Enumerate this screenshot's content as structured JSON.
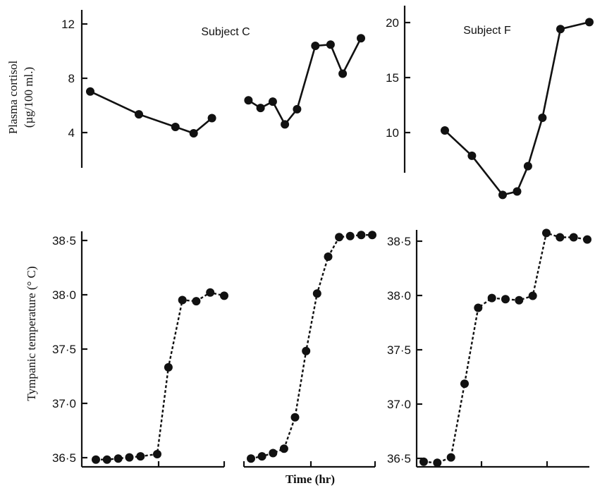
{
  "figure": {
    "ylabel_cortisol_line1": "Plasma cortisol",
    "ylabel_cortisol_line2": "(µg/100 ml.)",
    "ylabel_temp": "Tympanic temperature (° C)",
    "xlabel": "Time (hr)",
    "subject_c": "Subject C",
    "subject_f": "Subject F"
  },
  "chart_data": [
    {
      "id": "cortisol-c",
      "type": "line",
      "title": "Subject C",
      "ylabel": "Plasma cortisol (µg/100 ml.)",
      "ylim": [
        1.6,
        13.0
      ],
      "yticks": [
        4,
        8,
        12
      ],
      "ytick_labels": [
        "4",
        "8",
        "12"
      ],
      "series": [
        {
          "x": [
            0.0,
            0.8,
            1.4,
            1.7,
            2.0
          ],
          "values": [
            6.9,
            5.1,
            4.1,
            3.6,
            4.8
          ]
        },
        {
          "x": [
            2.6,
            2.8,
            3.0,
            3.2,
            3.4,
            3.7,
            3.95,
            4.15,
            4.45
          ],
          "values": [
            6.2,
            5.6,
            6.1,
            4.3,
            5.5,
            10.5,
            10.6,
            8.3,
            11.1
          ]
        }
      ],
      "grid": false
    },
    {
      "id": "cortisol-f",
      "type": "line",
      "title": "Subject F",
      "ylabel": "",
      "ylim": [
        6.5,
        21.5
      ],
      "yticks": [
        10,
        15,
        20
      ],
      "ytick_labels": [
        "10",
        "15",
        "20"
      ],
      "series": [
        {
          "x": [
            0.0,
            0.75,
            1.6,
            2.0,
            2.3,
            2.7,
            3.2,
            4.0
          ],
          "values": [
            11.4,
            9.2,
            5.8,
            6.1,
            8.3,
            12.5,
            20.2,
            20.8
          ]
        }
      ],
      "grid": false
    },
    {
      "id": "temp-c-1",
      "type": "line",
      "title": "",
      "ylabel": "Tympanic temperature (° C)",
      "ylim": [
        36.44,
        38.65
      ],
      "yticks": [
        36.5,
        37.0,
        37.5,
        38.0,
        38.5
      ],
      "ytick_labels": [
        "36·5",
        "37·0",
        "37·5",
        "38·0",
        "38·5"
      ],
      "line_style": "dashed",
      "series": [
        {
          "x": [
            0.0,
            0.4,
            0.8,
            1.2,
            1.6,
            2.2,
            2.6,
            3.1,
            3.6,
            4.1,
            4.6
          ],
          "values": [
            36.52,
            36.52,
            36.53,
            36.54,
            36.55,
            36.57,
            37.37,
            37.99,
            37.98,
            38.06,
            38.03
          ]
        }
      ],
      "grid": false
    },
    {
      "id": "temp-c-2",
      "type": "line",
      "title": "",
      "ylabel": "",
      "ylim": [
        36.44,
        38.65
      ],
      "yticks": [],
      "line_style": "dashed",
      "series": [
        {
          "x": [
            0.0,
            0.4,
            0.8,
            1.2,
            1.6,
            2.0,
            2.4,
            2.8,
            3.2,
            3.6,
            4.0,
            4.4
          ],
          "values": [
            36.53,
            36.55,
            36.58,
            36.62,
            36.91,
            37.52,
            38.05,
            38.39,
            38.57,
            38.58,
            38.59,
            38.59
          ]
        }
      ],
      "grid": false
    },
    {
      "id": "temp-f",
      "type": "line",
      "title": "",
      "ylabel": "",
      "ylim": [
        36.38,
        38.65
      ],
      "yticks": [
        36.5,
        37.0,
        37.5,
        38.0,
        38.5
      ],
      "ytick_labels": [
        "36·5",
        "37·0",
        "37·5",
        "38·0",
        "38·5"
      ],
      "line_style": "dashed",
      "series": [
        {
          "x": [
            0.0,
            0.4,
            0.8,
            1.2,
            1.6,
            2.0,
            2.4,
            2.8,
            3.2,
            3.6,
            4.0,
            4.4,
            4.8
          ],
          "values": [
            36.44,
            36.43,
            36.48,
            37.16,
            37.86,
            37.95,
            37.94,
            37.93,
            37.97,
            38.55,
            38.51,
            38.51,
            38.49
          ]
        }
      ],
      "grid": false
    }
  ]
}
